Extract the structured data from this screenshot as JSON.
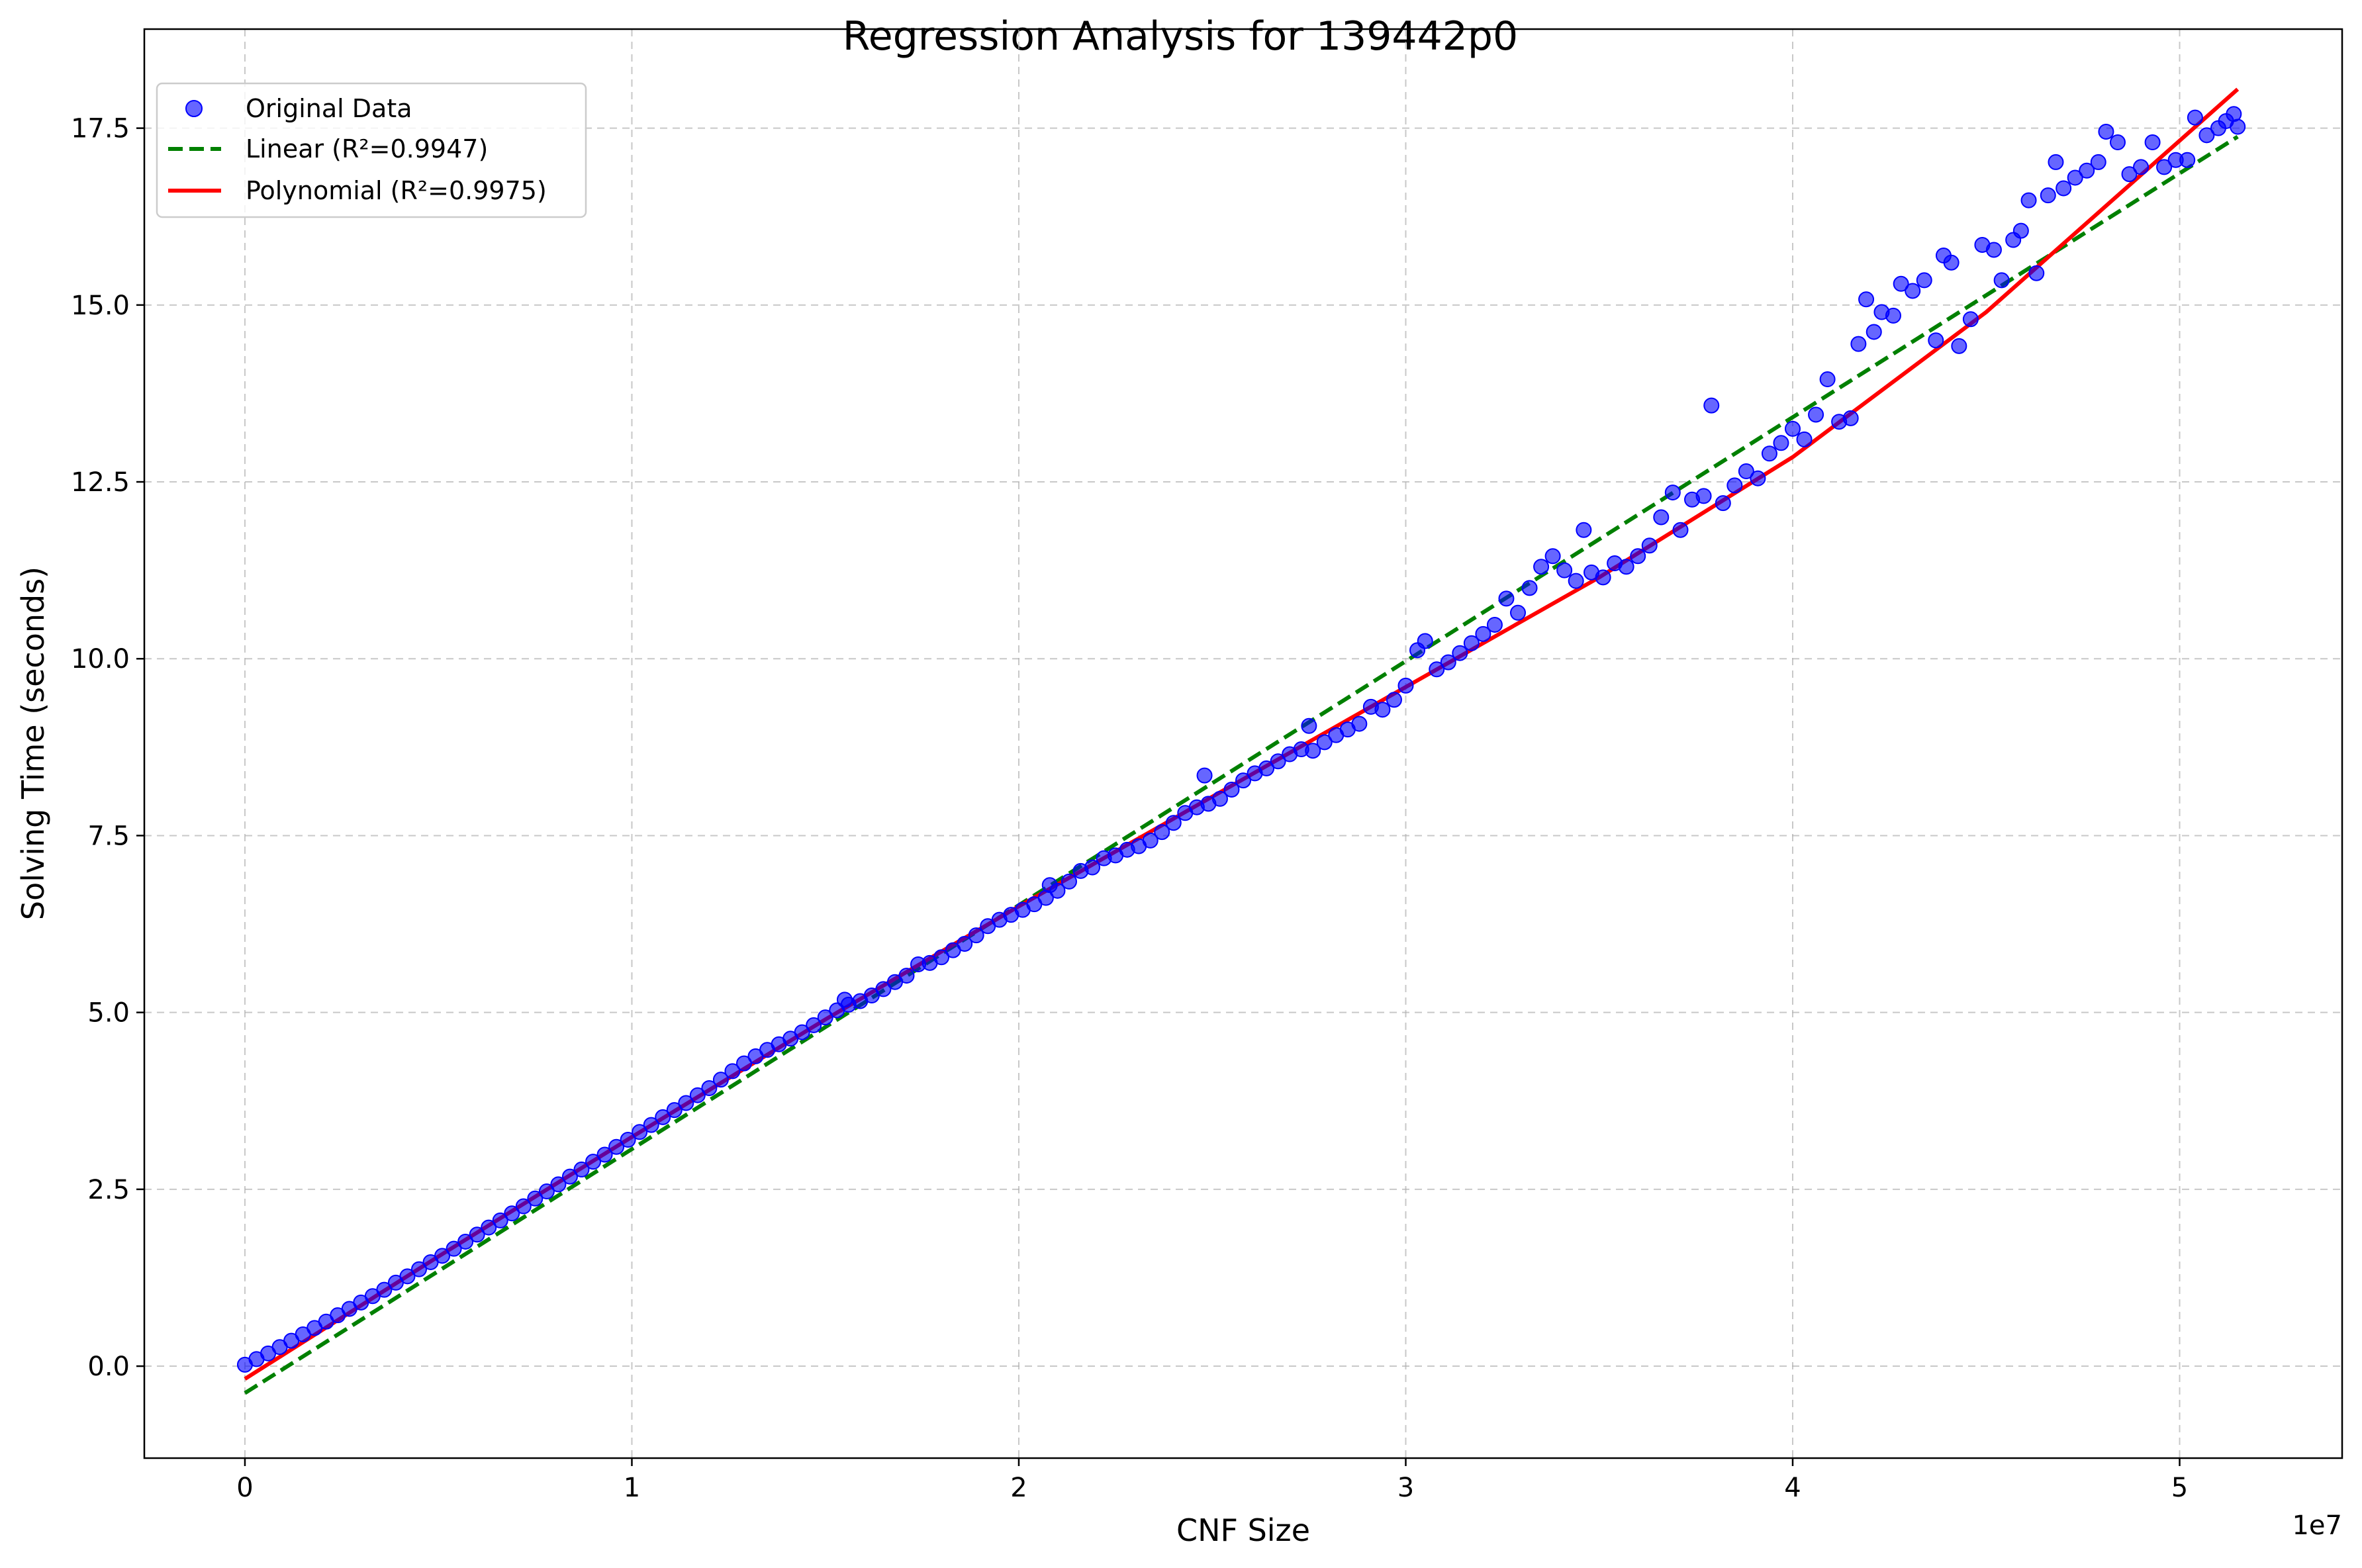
{
  "chart_data": {
    "type": "scatter",
    "title": "Regression Analysis for 139442p0",
    "xlabel": "CNF Size",
    "ylabel": "Solving Time (seconds)",
    "x_offset_label": "1e7",
    "x_scale": 10000000,
    "xlim": [
      -2600000,
      54200000
    ],
    "ylim": [
      -1.3,
      18.9
    ],
    "xticks": [
      0,
      10000000,
      20000000,
      30000000,
      40000000,
      50000000
    ],
    "xtick_labels": [
      "0",
      "1",
      "2",
      "3",
      "4",
      "5"
    ],
    "yticks": [
      0,
      2.5,
      5,
      7.5,
      10,
      12.5,
      15,
      17.5
    ],
    "ytick_labels": [
      "0.0",
      "2.5",
      "5.0",
      "7.5",
      "10.0",
      "12.5",
      "15.0",
      "17.5"
    ],
    "grid": true,
    "legend_position": "upper-left",
    "legend": [
      {
        "label": "Original Data",
        "kind": "marker",
        "color": "#0000ff"
      },
      {
        "label": "Linear (R²=0.9947)",
        "kind": "dashed-line",
        "color": "#008000"
      },
      {
        "label": "Polynomial (R²=0.9975)",
        "kind": "solid-line",
        "color": "#ff0000"
      }
    ],
    "series": [
      {
        "name": "Original Data",
        "kind": "scatter",
        "color": "#0000ff",
        "points": [
          [
            0,
            0.02
          ],
          [
            300000,
            0.1
          ],
          [
            600000,
            0.18
          ],
          [
            900000,
            0.27
          ],
          [
            1200000,
            0.36
          ],
          [
            1500000,
            0.45
          ],
          [
            1800000,
            0.54
          ],
          [
            2100000,
            0.63
          ],
          [
            2400000,
            0.72
          ],
          [
            2700000,
            0.81
          ],
          [
            3000000,
            0.9
          ],
          [
            3300000,
            0.99
          ],
          [
            3600000,
            1.08
          ],
          [
            3900000,
            1.18
          ],
          [
            4200000,
            1.27
          ],
          [
            4500000,
            1.37
          ],
          [
            4800000,
            1.47
          ],
          [
            5100000,
            1.56
          ],
          [
            5400000,
            1.66
          ],
          [
            5700000,
            1.76
          ],
          [
            6000000,
            1.86
          ],
          [
            6300000,
            1.96
          ],
          [
            6600000,
            2.06
          ],
          [
            6900000,
            2.16
          ],
          [
            7200000,
            2.26
          ],
          [
            7500000,
            2.37
          ],
          [
            7800000,
            2.47
          ],
          [
            8100000,
            2.57
          ],
          [
            8400000,
            2.68
          ],
          [
            8700000,
            2.78
          ],
          [
            9000000,
            2.89
          ],
          [
            9300000,
            2.99
          ],
          [
            9600000,
            3.1
          ],
          [
            9900000,
            3.2
          ],
          [
            10200000,
            3.31
          ],
          [
            10500000,
            3.41
          ],
          [
            10800000,
            3.52
          ],
          [
            11100000,
            3.62
          ],
          [
            11400000,
            3.72
          ],
          [
            11700000,
            3.83
          ],
          [
            12000000,
            3.93
          ],
          [
            12300000,
            4.05
          ],
          [
            12600000,
            4.17
          ],
          [
            12900000,
            4.28
          ],
          [
            13200000,
            4.38
          ],
          [
            13500000,
            4.47
          ],
          [
            13800000,
            4.55
          ],
          [
            14100000,
            4.63
          ],
          [
            14400000,
            4.72
          ],
          [
            14700000,
            4.82
          ],
          [
            15000000,
            4.93
          ],
          [
            15300000,
            5.03
          ],
          [
            15600000,
            5.11
          ],
          [
            15500000,
            5.18
          ],
          [
            15900000,
            5.16
          ],
          [
            16200000,
            5.24
          ],
          [
            16500000,
            5.33
          ],
          [
            16800000,
            5.43
          ],
          [
            17100000,
            5.52
          ],
          [
            17400000,
            5.68
          ],
          [
            17700000,
            5.7
          ],
          [
            18000000,
            5.78
          ],
          [
            18300000,
            5.88
          ],
          [
            18600000,
            5.97
          ],
          [
            18900000,
            6.09
          ],
          [
            19200000,
            6.22
          ],
          [
            19500000,
            6.31
          ],
          [
            19800000,
            6.38
          ],
          [
            20100000,
            6.45
          ],
          [
            20400000,
            6.53
          ],
          [
            20700000,
            6.62
          ],
          [
            20800000,
            6.8
          ],
          [
            21000000,
            6.72
          ],
          [
            21300000,
            6.85
          ],
          [
            21600000,
            7.0
          ],
          [
            21900000,
            7.05
          ],
          [
            22200000,
            7.18
          ],
          [
            22500000,
            7.22
          ],
          [
            22800000,
            7.3
          ],
          [
            23100000,
            7.35
          ],
          [
            23400000,
            7.43
          ],
          [
            23700000,
            7.55
          ],
          [
            24000000,
            7.68
          ],
          [
            24300000,
            7.82
          ],
          [
            24600000,
            7.9
          ],
          [
            24800000,
            8.35
          ],
          [
            24900000,
            7.95
          ],
          [
            25200000,
            8.02
          ],
          [
            25500000,
            8.15
          ],
          [
            25800000,
            8.28
          ],
          [
            26100000,
            8.38
          ],
          [
            26400000,
            8.45
          ],
          [
            26700000,
            8.55
          ],
          [
            27000000,
            8.65
          ],
          [
            27300000,
            8.72
          ],
          [
            27500000,
            9.05
          ],
          [
            27600000,
            8.7
          ],
          [
            27900000,
            8.82
          ],
          [
            28200000,
            8.92
          ],
          [
            28500000,
            9.0
          ],
          [
            28800000,
            9.08
          ],
          [
            29100000,
            9.32
          ],
          [
            29400000,
            9.28
          ],
          [
            29700000,
            9.42
          ],
          [
            30000000,
            9.62
          ],
          [
            30300000,
            10.12
          ],
          [
            30500000,
            10.25
          ],
          [
            30800000,
            9.85
          ],
          [
            31100000,
            9.95
          ],
          [
            31400000,
            10.08
          ],
          [
            31700000,
            10.22
          ],
          [
            32000000,
            10.35
          ],
          [
            32300000,
            10.48
          ],
          [
            32600000,
            10.85
          ],
          [
            32900000,
            10.65
          ],
          [
            33200000,
            11.0
          ],
          [
            33500000,
            11.3
          ],
          [
            33800000,
            11.45
          ],
          [
            34100000,
            11.25
          ],
          [
            34400000,
            11.1
          ],
          [
            34600000,
            11.82
          ],
          [
            34800000,
            11.22
          ],
          [
            35100000,
            11.15
          ],
          [
            35400000,
            11.35
          ],
          [
            35700000,
            11.3
          ],
          [
            36000000,
            11.45
          ],
          [
            36300000,
            11.6
          ],
          [
            36600000,
            12.0
          ],
          [
            36900000,
            12.35
          ],
          [
            37100000,
            11.82
          ],
          [
            37400000,
            12.25
          ],
          [
            37700000,
            12.3
          ],
          [
            37900000,
            13.58
          ],
          [
            38200000,
            12.2
          ],
          [
            38500000,
            12.45
          ],
          [
            38800000,
            12.65
          ],
          [
            39100000,
            12.55
          ],
          [
            39400000,
            12.9
          ],
          [
            39700000,
            13.05
          ],
          [
            40000000,
            13.25
          ],
          [
            40300000,
            13.1
          ],
          [
            40600000,
            13.45
          ],
          [
            40900000,
            13.95
          ],
          [
            41200000,
            13.35
          ],
          [
            41500000,
            13.4
          ],
          [
            41700000,
            14.45
          ],
          [
            41900000,
            15.08
          ],
          [
            42100000,
            14.62
          ],
          [
            42300000,
            14.9
          ],
          [
            42600000,
            14.85
          ],
          [
            42800000,
            15.3
          ],
          [
            43100000,
            15.2
          ],
          [
            43400000,
            15.35
          ],
          [
            43700000,
            14.5
          ],
          [
            43900000,
            15.7
          ],
          [
            44100000,
            15.6
          ],
          [
            44300000,
            14.42
          ],
          [
            44600000,
            14.8
          ],
          [
            44900000,
            15.85
          ],
          [
            45200000,
            15.78
          ],
          [
            45400000,
            15.35
          ],
          [
            45700000,
            15.92
          ],
          [
            45900000,
            16.05
          ],
          [
            46100000,
            16.48
          ],
          [
            46300000,
            15.45
          ],
          [
            46600000,
            16.55
          ],
          [
            46800000,
            17.02
          ],
          [
            47000000,
            16.65
          ],
          [
            47300000,
            16.8
          ],
          [
            47600000,
            16.9
          ],
          [
            47900000,
            17.02
          ],
          [
            48100000,
            17.45
          ],
          [
            48400000,
            17.3
          ],
          [
            48700000,
            16.85
          ],
          [
            49000000,
            16.95
          ],
          [
            49300000,
            17.3
          ],
          [
            49600000,
            16.95
          ],
          [
            49900000,
            17.05
          ],
          [
            50200000,
            17.05
          ],
          [
            50400000,
            17.65
          ],
          [
            50700000,
            17.4
          ],
          [
            51000000,
            17.5
          ],
          [
            51200000,
            17.6
          ],
          [
            51400000,
            17.7
          ],
          [
            51500000,
            17.52
          ]
        ]
      },
      {
        "name": "Linear (R²=0.9947)",
        "kind": "line",
        "style": "dashed",
        "color": "#008000",
        "x": [
          0,
          51500000
        ],
        "y": [
          -0.38,
          17.38
        ]
      },
      {
        "name": "Polynomial (R²=0.9975)",
        "kind": "line",
        "style": "solid",
        "color": "#ff0000",
        "x": [
          0,
          5000000,
          10000000,
          15000000,
          20000000,
          25000000,
          30000000,
          35000000,
          40000000,
          45000000,
          51500000
        ],
        "y": [
          -0.18,
          1.55,
          3.24,
          4.9,
          6.5,
          8.05,
          9.6,
          11.15,
          12.85,
          14.9,
          18.05
        ]
      }
    ]
  }
}
